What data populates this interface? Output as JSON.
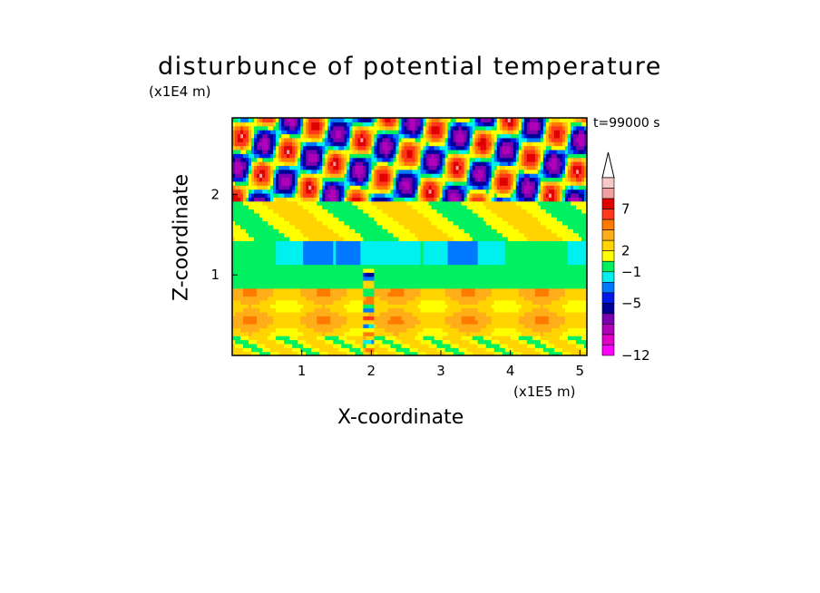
{
  "chart_data": {
    "type": "heatmap",
    "title": "disturbunce of potential temperature",
    "time_label": "t=99000 s",
    "xlabel": "X-coordinate",
    "ylabel": "Z-coordinate",
    "x_unit": "(x1E5 m)",
    "z_unit": "(x1E4 m)",
    "x_ticks": [
      "1",
      "2",
      "3",
      "4",
      "5"
    ],
    "z_ticks": [
      "1",
      "2"
    ],
    "xlim": [
      0,
      5.1
    ],
    "zlim": [
      0,
      2.95
    ],
    "colorbar": {
      "tick_labels": [
        "7",
        "2",
        "−1",
        "−5",
        "−12"
      ],
      "levels_high_to_low": [
        {
          "color": "#ffffff"
        },
        {
          "color": "#f7c8c8"
        },
        {
          "color": "#f0a0a0"
        },
        {
          "color": "#e00000"
        },
        {
          "color": "#ff3a1a"
        },
        {
          "color": "#ff7b00"
        },
        {
          "color": "#ffae1a"
        },
        {
          "color": "#ffd400"
        },
        {
          "color": "#ffff00"
        },
        {
          "color": "#00f060"
        },
        {
          "color": "#00f0f0"
        },
        {
          "color": "#0078ff"
        },
        {
          "color": "#0018e8"
        },
        {
          "color": "#000098"
        },
        {
          "color": "#7a00b0"
        },
        {
          "color": "#b000b8"
        },
        {
          "color": "#e000c8"
        },
        {
          "color": "#ff00ff"
        }
      ]
    },
    "bands": [
      {
        "z": [
          0,
          0.25
        ],
        "level": "yellow/green mix"
      },
      {
        "z": [
          0.25,
          0.85
        ],
        "level": "yellow/orange"
      },
      {
        "z": [
          0.85,
          1.15
        ],
        "level": "green"
      },
      {
        "z": [
          1.15,
          1.45
        ],
        "level": "cyan/green"
      },
      {
        "z": [
          1.45,
          1.9
        ],
        "level": "yellow/green"
      },
      {
        "z": [
          1.9,
          2.95
        ],
        "level": "mixed waves red/blue"
      }
    ]
  }
}
